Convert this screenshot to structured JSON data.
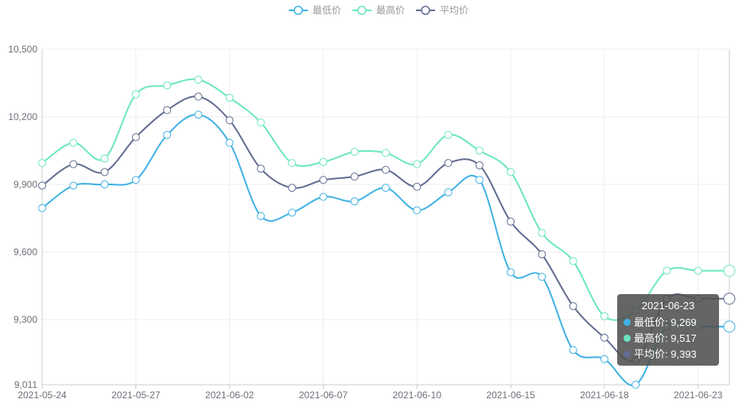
{
  "chart_data": {
    "type": "line",
    "title": "",
    "xlabel": "",
    "ylabel": "",
    "x": [
      "2021-05-24",
      "2021-05-25",
      "2021-05-26",
      "2021-05-27",
      "2021-05-28",
      "2021-05-31",
      "2021-06-01",
      "2021-06-02",
      "2021-06-03",
      "2021-06-04",
      "2021-06-07",
      "2021-06-08",
      "2021-06-09",
      "2021-06-10",
      "2021-06-11",
      "2021-06-14",
      "2021-06-15",
      "2021-06-16",
      "2021-06-17",
      "2021-06-18",
      "2021-06-21",
      "2021-06-22",
      "2021-06-23"
    ],
    "x_tick_labels": [
      "2021-05-24",
      "2021-05-27",
      "2021-06-02",
      "2021-06-07",
      "2021-06-10",
      "2021-06-15",
      "2021-06-18",
      "2021-06-23"
    ],
    "x_tick_every": 3,
    "y_ticks": [
      9011,
      9300,
      9600,
      9900,
      10200,
      10500
    ],
    "y_tick_labels": [
      "9,011",
      "9,300",
      "9,600",
      "9,900",
      "10,200",
      "10,500"
    ],
    "ylim": [
      9011,
      10500
    ],
    "grid": true,
    "legend_position": "top-center",
    "series": [
      {
        "name": "最低价",
        "color": "#3fb1e3",
        "values": [
          9795,
          9895,
          9900,
          9920,
          10120,
          10210,
          10085,
          9760,
          9775,
          9845,
          9825,
          9885,
          9785,
          9865,
          9920,
          9510,
          9490,
          9165,
          9125,
          9011,
          9269,
          9269,
          9269
        ]
      },
      {
        "name": "最高价",
        "color": "#6be6c1",
        "values": [
          9995,
          10085,
          10015,
          10300,
          10340,
          10365,
          10285,
          10175,
          9995,
          10000,
          10045,
          10040,
          9990,
          10120,
          10050,
          9955,
          9685,
          9560,
          9315,
          9340,
          9517,
          9517,
          9517
        ]
      },
      {
        "name": "平均价",
        "color": "#626c91",
        "values": [
          9895,
          9990,
          9955,
          10110,
          10230,
          10290,
          10185,
          9970,
          9885,
          9920,
          9935,
          9965,
          9890,
          9995,
          9985,
          9735,
          9590,
          9360,
          9220,
          9120,
          9393,
          9393,
          9393
        ]
      }
    ],
    "tooltip": {
      "date": "2021-06-23",
      "rows": [
        {
          "name": "最低价",
          "value": "9,269",
          "color": "#3fb1e3"
        },
        {
          "name": "最高价",
          "value": "9,517",
          "color": "#6be6c1"
        },
        {
          "name": "平均价",
          "value": "9,393",
          "color": "#626c91"
        }
      ]
    }
  }
}
